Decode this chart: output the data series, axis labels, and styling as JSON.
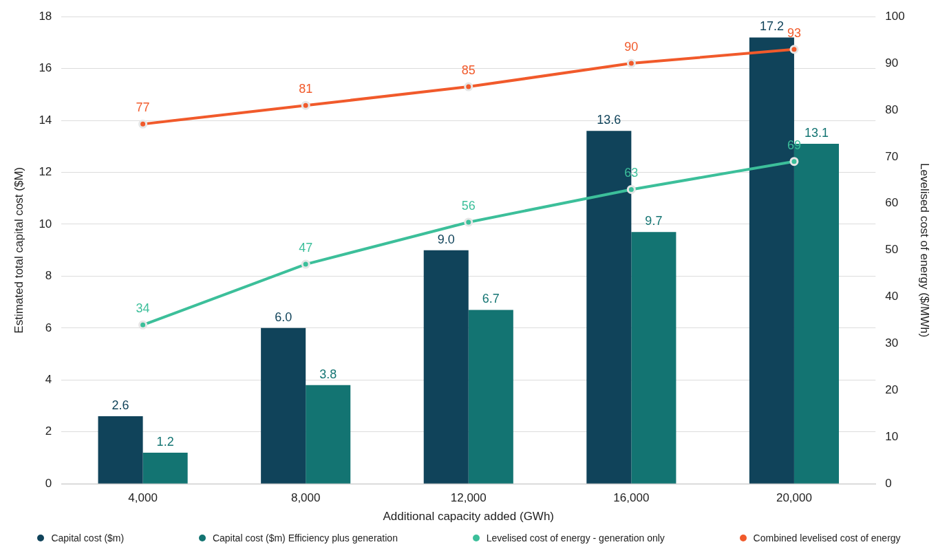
{
  "chart_data": {
    "type": "bar",
    "xlabel": "Additional capacity added (GWh)",
    "ylabel": "Estimated total capital cost ($M)",
    "y2label": "Levelised cost of energy ($/MWh)",
    "categories": [
      "4,000",
      "8,000",
      "12,000",
      "16,000",
      "20,000"
    ],
    "series": [
      {
        "name": "Capital cost ($m)",
        "color": "#10435a",
        "values": [
          2.6,
          6.0,
          9.0,
          13.6,
          17.2
        ],
        "value_labels": [
          "2.6",
          "6.0",
          "9.0",
          "13.6",
          "17.2"
        ]
      },
      {
        "name": "Capital cost ($m) Efficiency plus generation",
        "color": "#137472",
        "values": [
          1.2,
          3.8,
          6.7,
          9.7,
          13.1
        ],
        "value_labels": [
          "1.2",
          "3.8",
          "6.7",
          "9.7",
          "13.1"
        ]
      },
      {
        "name": "Levelised cost of energy - generation only",
        "type": "line",
        "axis": "y2",
        "color": "#3cbf9a",
        "values": [
          34,
          47,
          56,
          63,
          69
        ],
        "value_labels": [
          "34",
          "47",
          "56",
          "63",
          "69"
        ]
      },
      {
        "name": "Combined levelised cost of energy",
        "type": "line",
        "axis": "y2",
        "color": "#f15a2b",
        "values": [
          77,
          81,
          85,
          90,
          93
        ],
        "value_labels": [
          "77",
          "81",
          "85",
          "90",
          "93"
        ]
      }
    ],
    "ylim": [
      0,
      18
    ],
    "yticks": [
      0,
      2,
      4,
      6,
      8,
      10,
      12,
      14,
      16,
      18
    ],
    "y2lim": [
      0,
      100
    ],
    "y2ticks": [
      0,
      10,
      20,
      30,
      40,
      50,
      60,
      70,
      80,
      90,
      100
    ],
    "grid": "y",
    "legend": "bottom",
    "marker": "circle",
    "line_style": "solid"
  }
}
